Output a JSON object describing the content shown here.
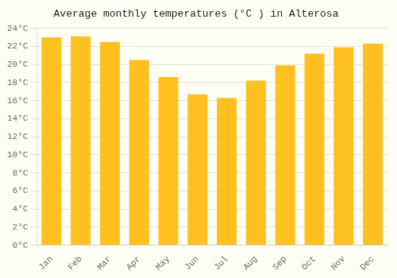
{
  "chart_data": {
    "type": "bar",
    "title": "Average monthly temperatures (°C ) in Alterosa",
    "categories": [
      "Jan",
      "Feb",
      "Mar",
      "Apr",
      "May",
      "Jun",
      "Jul",
      "Aug",
      "Sep",
      "Oct",
      "Nov",
      "Dec"
    ],
    "values": [
      23.0,
      23.1,
      22.5,
      20.5,
      18.6,
      16.7,
      16.3,
      18.2,
      19.9,
      21.2,
      21.9,
      22.3
    ],
    "color": "#FFC020",
    "ylim": [
      0,
      24
    ],
    "yticks": [
      {
        "value": 0,
        "label": "0°C"
      },
      {
        "value": 2,
        "label": "2°C"
      },
      {
        "value": 4,
        "label": "4°C"
      },
      {
        "value": 6,
        "label": "6°C"
      },
      {
        "value": 8,
        "label": "8°C"
      },
      {
        "value": 10,
        "label": "10°C"
      },
      {
        "value": 12,
        "label": "12°C"
      },
      {
        "value": 14,
        "label": "14°C"
      },
      {
        "value": 16,
        "label": "16°C"
      },
      {
        "value": 18,
        "label": "18°C"
      },
      {
        "value": 20,
        "label": "20°C"
      },
      {
        "value": 22,
        "label": "22°C"
      },
      {
        "value": 24,
        "label": "24°C"
      }
    ],
    "grid": true
  }
}
